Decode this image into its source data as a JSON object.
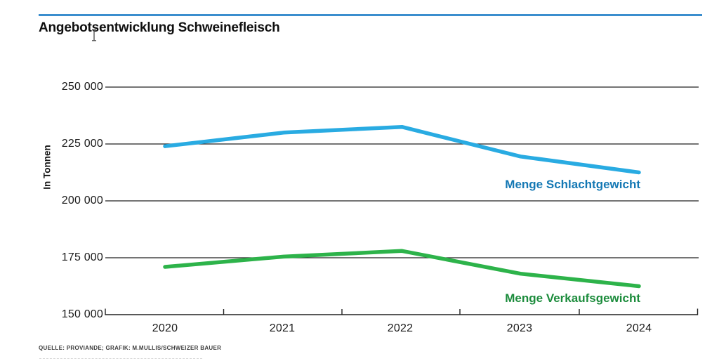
{
  "page": {
    "title": "Angebotsentwicklung Schweinefleisch",
    "source_line": "QUELLE: PROVIANDE; GRAFIK: M.MULLIS/SCHWEIZER BAUER"
  },
  "chart_data": {
    "type": "line",
    "title": "Angebotsentwicklung Schweinefleisch",
    "ylabel": "In Tonnen",
    "x": [
      2020,
      2021,
      2022,
      2023,
      2024
    ],
    "series": [
      {
        "name": "Menge Schlachtgewicht",
        "color": "#29ABE2",
        "label_color": "#1478B4",
        "values": [
          224000,
          230000,
          232500,
          219500,
          212500
        ]
      },
      {
        "name": "Menge Verkaufsgewicht",
        "color": "#2DB34A",
        "label_color": "#1C8C3C",
        "values": [
          171000,
          175500,
          178000,
          168000,
          162500
        ]
      }
    ],
    "ylim": [
      150000,
      250000
    ],
    "yticks": [
      "150 000",
      "175 000",
      "200 000",
      "225 000",
      "250 000"
    ],
    "grid": true,
    "legend_position": "inline-right-of-line-ends",
    "accent_rule_color": "#3B8ECE"
  }
}
